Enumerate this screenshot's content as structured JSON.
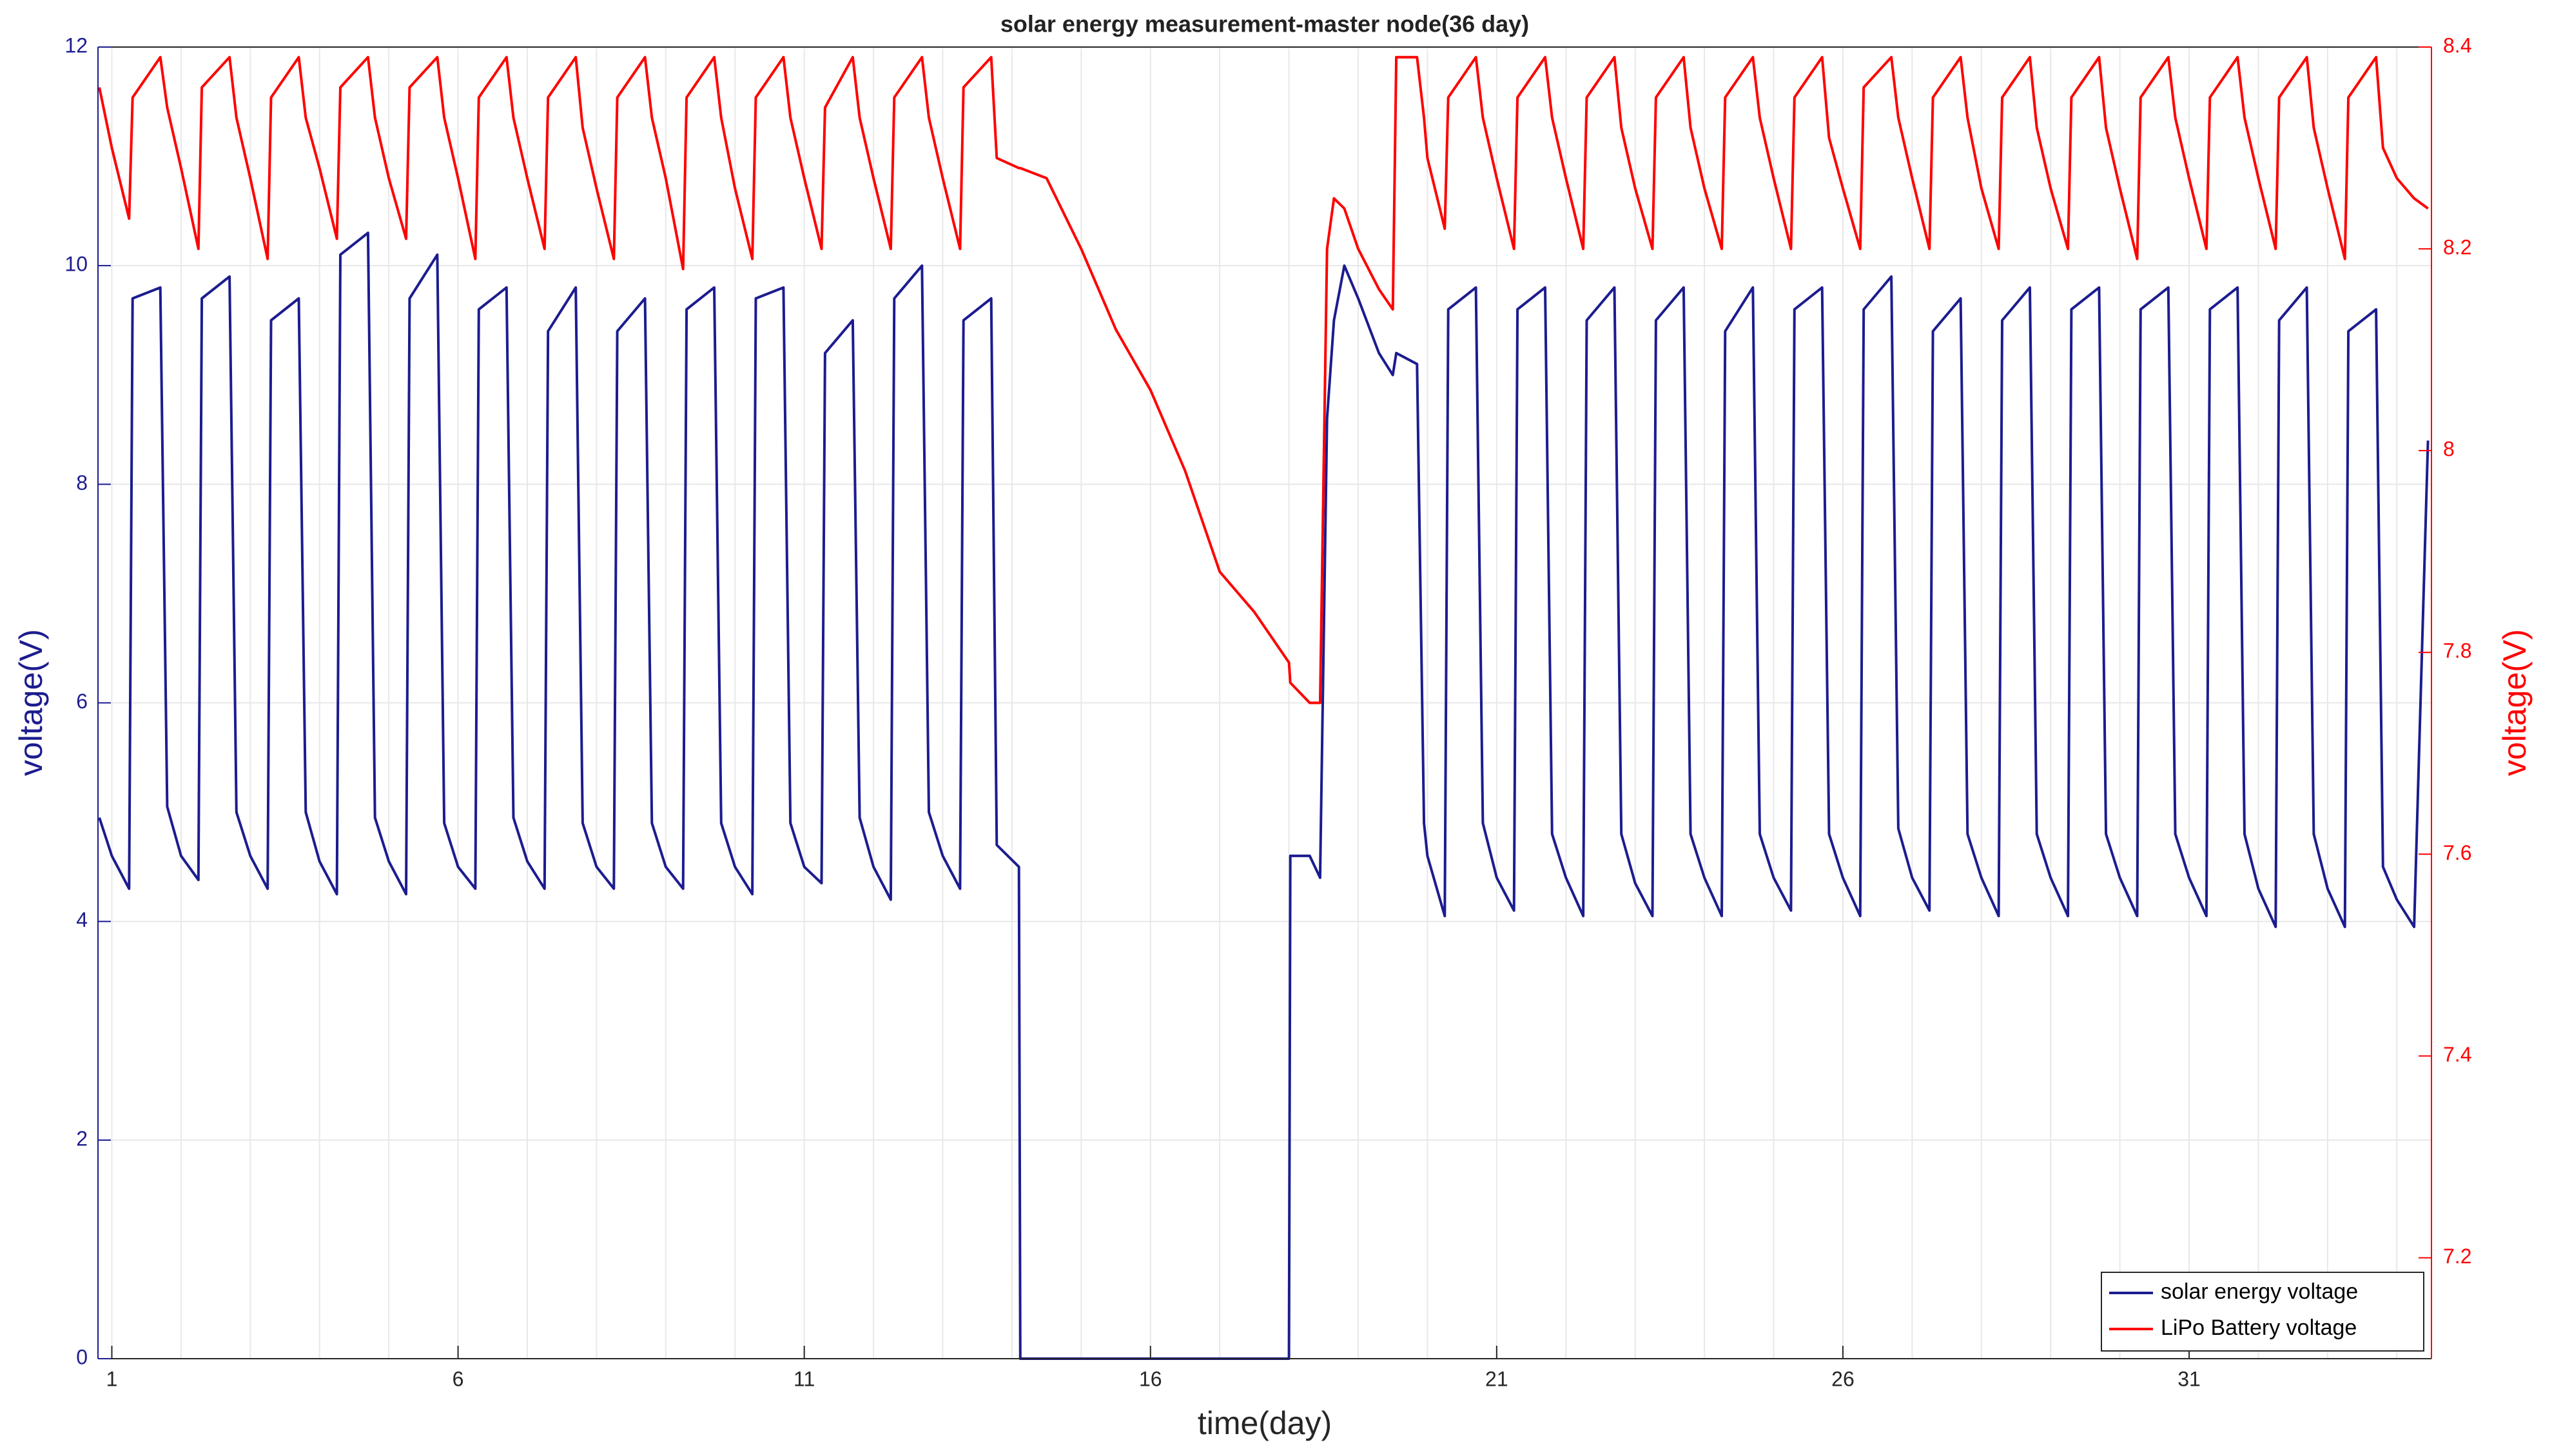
{
  "chart_data": {
    "type": "line",
    "title": "solar energy measurement-master node(36 day)",
    "xlabel": "time(day)",
    "ylabel": "voltage(V)",
    "y2label": "voltage(V)",
    "xlim": [
      0.8,
      34.5
    ],
    "xticks": [
      1,
      6,
      11,
      16,
      21,
      26,
      31
    ],
    "xminorticks": [
      1,
      2,
      3,
      4,
      5,
      6,
      7,
      8,
      9,
      10,
      11,
      12,
      13,
      14,
      15,
      16,
      17,
      18,
      19,
      20,
      21,
      22,
      23,
      24,
      25,
      26,
      27,
      28,
      29,
      30,
      31,
      32,
      33,
      34
    ],
    "ylim": [
      0,
      12
    ],
    "yticks": [
      0,
      2,
      4,
      6,
      8,
      10,
      12
    ],
    "y2lim": [
      7.1,
      8.4
    ],
    "y2ticks": [
      7.2,
      7.4,
      7.6,
      7.8,
      8,
      8.2,
      8.4
    ],
    "grid": true,
    "legend": "lower right",
    "x": [
      0.82,
      1.0,
      1.25,
      1.3,
      1.7,
      1.8,
      2.0,
      2.25,
      2.3,
      2.7,
      2.8,
      3.0,
      3.25,
      3.3,
      3.7,
      3.8,
      4.0,
      4.25,
      4.3,
      4.7,
      4.8,
      5.0,
      5.25,
      5.3,
      5.7,
      5.8,
      6.0,
      6.25,
      6.3,
      6.7,
      6.8,
      7.0,
      7.25,
      7.3,
      7.7,
      7.8,
      8.0,
      8.25,
      8.3,
      8.7,
      8.8,
      9.0,
      9.25,
      9.3,
      9.7,
      9.8,
      10.0,
      10.25,
      10.3,
      10.7,
      10.8,
      11.0,
      11.25,
      11.3,
      11.7,
      11.8,
      12.0,
      12.25,
      12.3,
      12.7,
      12.8,
      13.0,
      13.25,
      13.3,
      13.7,
      13.78,
      14.1,
      14.12,
      14.5,
      15.0,
      15.5,
      16.0,
      16.5,
      17.0,
      17.5,
      18.0,
      18.02,
      18.3,
      18.45,
      18.55,
      18.65,
      18.8,
      19.0,
      19.3,
      19.5,
      19.55,
      19.85,
      19.95,
      20.0,
      20.25,
      20.3,
      20.7,
      20.8,
      21.0,
      21.25,
      21.3,
      21.7,
      21.8,
      22.0,
      22.25,
      22.3,
      22.7,
      22.8,
      23.0,
      23.25,
      23.3,
      23.7,
      23.8,
      24.0,
      24.25,
      24.3,
      24.7,
      24.8,
      25.0,
      25.25,
      25.3,
      25.7,
      25.8,
      26.0,
      26.25,
      26.3,
      26.7,
      26.8,
      27.0,
      27.25,
      27.3,
      27.7,
      27.8,
      28.0,
      28.25,
      28.3,
      28.7,
      28.8,
      29.0,
      29.25,
      29.3,
      29.7,
      29.8,
      30.0,
      30.25,
      30.3,
      30.7,
      30.8,
      31.0,
      31.25,
      31.3,
      31.7,
      31.8,
      32.0,
      32.25,
      32.3,
      32.7,
      32.8,
      33.0,
      33.25,
      33.3,
      33.7,
      33.8,
      34.0,
      34.25,
      34.45
    ],
    "series": [
      {
        "name": "solar energy voltage",
        "color": "#1c1c8f",
        "axis": "y",
        "values": [
          4.95,
          4.6,
          4.3,
          9.7,
          9.8,
          5.05,
          4.6,
          4.38,
          9.7,
          9.9,
          5.0,
          4.6,
          4.3,
          9.5,
          9.7,
          5.0,
          4.55,
          4.25,
          10.1,
          10.3,
          4.95,
          4.55,
          4.25,
          9.7,
          10.1,
          4.9,
          4.5,
          4.3,
          9.6,
          9.8,
          4.95,
          4.55,
          4.3,
          9.4,
          9.8,
          4.9,
          4.5,
          4.3,
          9.4,
          9.7,
          4.9,
          4.5,
          4.3,
          9.6,
          9.8,
          4.9,
          4.5,
          4.25,
          9.7,
          9.8,
          4.9,
          4.5,
          4.35,
          9.2,
          9.5,
          4.95,
          4.5,
          4.2,
          9.7,
          10.0,
          5.0,
          4.6,
          4.3,
          9.5,
          9.7,
          4.7,
          4.5,
          0,
          0,
          0,
          0,
          0,
          0,
          0,
          0,
          0,
          4.6,
          4.6,
          4.4,
          8.6,
          9.5,
          10.0,
          9.7,
          9.2,
          9.0,
          9.2,
          9.1,
          4.9,
          4.6,
          4.05,
          9.6,
          9.8,
          4.9,
          4.4,
          4.1,
          9.6,
          9.8,
          4.8,
          4.4,
          4.05,
          9.5,
          9.8,
          4.8,
          4.35,
          4.05,
          9.5,
          9.8,
          4.8,
          4.4,
          4.05,
          9.4,
          9.8,
          4.8,
          4.4,
          4.1,
          9.6,
          9.8,
          4.8,
          4.4,
          4.05,
          9.6,
          9.9,
          4.85,
          4.4,
          4.1,
          9.4,
          9.7,
          4.8,
          4.4,
          4.05,
          9.5,
          9.8,
          4.8,
          4.4,
          4.05,
          9.6,
          9.8,
          4.8,
          4.4,
          4.05,
          9.6,
          9.8,
          4.8,
          4.4,
          4.05,
          9.6,
          9.8,
          4.8,
          4.3,
          3.95,
          9.5,
          9.8,
          4.8,
          4.3,
          3.95,
          9.4,
          9.6,
          4.5,
          4.2,
          3.95,
          8.4
        ]
      },
      {
        "name": "LiPo Battery voltage",
        "color": "#ff0000",
        "axis": "y2",
        "values": [
          8.36,
          8.3,
          8.23,
          8.35,
          8.39,
          8.34,
          8.28,
          8.2,
          8.36,
          8.39,
          8.33,
          8.27,
          8.19,
          8.35,
          8.39,
          8.33,
          8.28,
          8.21,
          8.36,
          8.39,
          8.33,
          8.27,
          8.21,
          8.36,
          8.39,
          8.33,
          8.27,
          8.19,
          8.35,
          8.39,
          8.33,
          8.27,
          8.2,
          8.35,
          8.39,
          8.32,
          8.26,
          8.19,
          8.35,
          8.39,
          8.33,
          8.27,
          8.18,
          8.35,
          8.39,
          8.33,
          8.26,
          8.19,
          8.35,
          8.39,
          8.33,
          8.27,
          8.2,
          8.34,
          8.39,
          8.33,
          8.27,
          8.2,
          8.35,
          8.39,
          8.33,
          8.27,
          8.2,
          8.36,
          8.39,
          8.29,
          8.28,
          8.28,
          8.27,
          8.2,
          8.12,
          8.06,
          7.98,
          7.88,
          7.84,
          7.79,
          7.77,
          7.75,
          7.75,
          8.2,
          8.25,
          8.24,
          8.2,
          8.16,
          8.14,
          8.39,
          8.39,
          8.33,
          8.29,
          8.22,
          8.35,
          8.39,
          8.33,
          8.27,
          8.2,
          8.35,
          8.39,
          8.33,
          8.27,
          8.2,
          8.35,
          8.39,
          8.32,
          8.26,
          8.2,
          8.35,
          8.39,
          8.32,
          8.26,
          8.2,
          8.35,
          8.39,
          8.33,
          8.27,
          8.2,
          8.35,
          8.39,
          8.31,
          8.26,
          8.2,
          8.36,
          8.39,
          8.33,
          8.27,
          8.2,
          8.35,
          8.39,
          8.33,
          8.26,
          8.2,
          8.35,
          8.39,
          8.32,
          8.26,
          8.2,
          8.35,
          8.39,
          8.32,
          8.26,
          8.19,
          8.35,
          8.39,
          8.33,
          8.27,
          8.2,
          8.35,
          8.39,
          8.33,
          8.27,
          8.2,
          8.35,
          8.39,
          8.32,
          8.26,
          8.19,
          8.35,
          8.39,
          8.3,
          8.27,
          8.25,
          8.24
        ]
      }
    ]
  }
}
